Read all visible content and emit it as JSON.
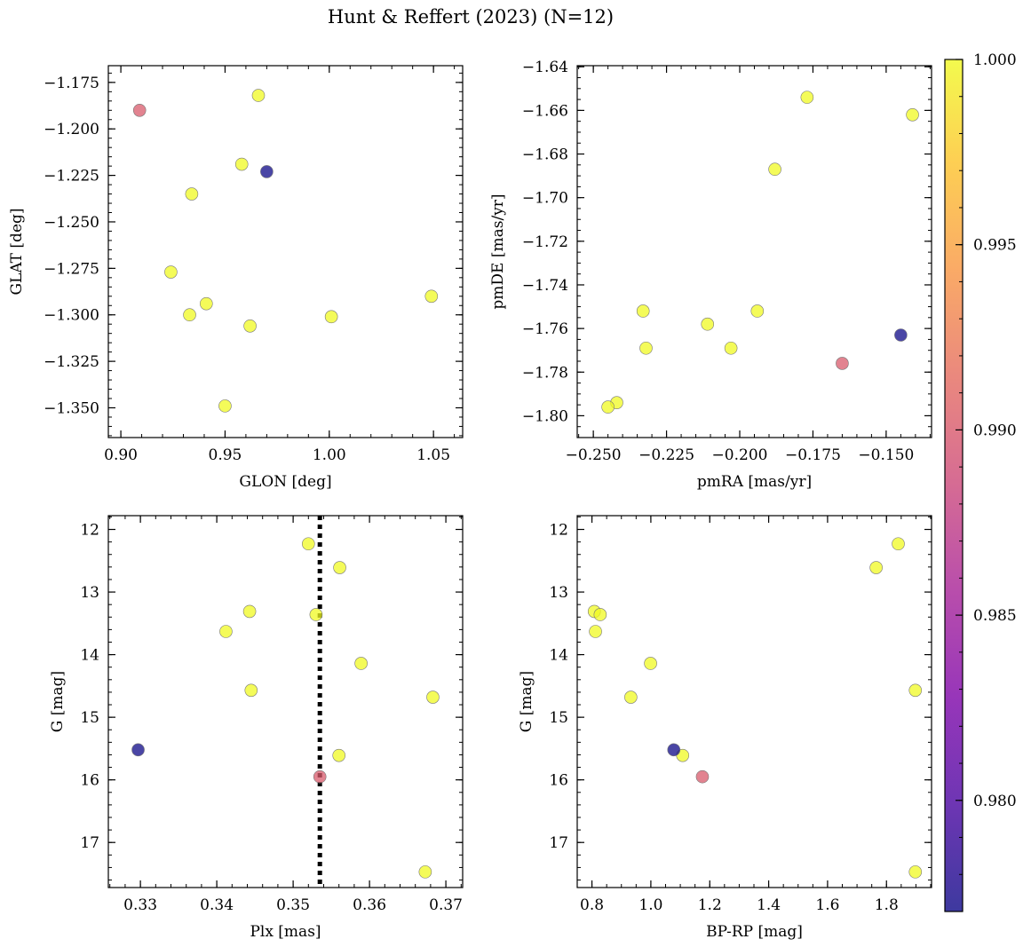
{
  "chart_data": {
    "title": "Hunt & Reffert (2023) (N=12)",
    "colorbar": {
      "colormap": "plasma",
      "range": [
        0.977,
        1.0
      ],
      "ticks": [
        0.98,
        0.985,
        0.99,
        0.995,
        1.0
      ],
      "tick_labels": [
        "0.980",
        "0.985",
        "0.990",
        "0.995",
        "1.000"
      ]
    },
    "stars": [
      {
        "glon": 0.909,
        "glat": -1.19,
        "pmra": -0.165,
        "pmde": -1.776,
        "plx": 0.3535,
        "g": 15.95,
        "bprp": 1.175,
        "prob": 0.99
      },
      {
        "glon": 0.97,
        "glat": -1.223,
        "pmra": -0.145,
        "pmde": -1.763,
        "plx": 0.3297,
        "g": 15.52,
        "bprp": 1.078,
        "prob": 0.977
      },
      {
        "glon": 0.966,
        "glat": -1.182,
        "pmra": -0.177,
        "pmde": -1.654,
        "plx": 0.352,
        "g": 12.23,
        "bprp": 1.84,
        "prob": 1.0
      },
      {
        "glon": 0.958,
        "glat": -1.219,
        "pmra": -0.141,
        "pmde": -1.662,
        "plx": 0.3561,
        "g": 12.61,
        "bprp": 1.765,
        "prob": 1.0
      },
      {
        "glon": 0.934,
        "glat": -1.235,
        "pmra": -0.188,
        "pmde": -1.687,
        "plx": 0.3443,
        "g": 13.31,
        "bprp": 0.808,
        "prob": 1.0
      },
      {
        "glon": 0.924,
        "glat": -1.277,
        "pmra": -0.233,
        "pmde": -1.752,
        "plx": 0.353,
        "g": 13.36,
        "bprp": 0.828,
        "prob": 1.0
      },
      {
        "glon": 0.941,
        "glat": -1.294,
        "pmra": -0.211,
        "pmde": -1.758,
        "plx": 0.3412,
        "g": 13.63,
        "bprp": 0.812,
        "prob": 1.0
      },
      {
        "glon": 0.933,
        "glat": -1.3,
        "pmra": -0.194,
        "pmde": -1.752,
        "plx": 0.3589,
        "g": 14.14,
        "bprp": 0.999,
        "prob": 1.0
      },
      {
        "glon": 1.049,
        "glat": -1.29,
        "pmra": -0.232,
        "pmde": -1.769,
        "plx": 0.3445,
        "g": 14.57,
        "bprp": 1.898,
        "prob": 1.0
      },
      {
        "glon": 1.001,
        "glat": -1.301,
        "pmra": -0.203,
        "pmde": -1.769,
        "plx": 0.3683,
        "g": 14.68,
        "bprp": 0.932,
        "prob": 1.0
      },
      {
        "glon": 0.962,
        "glat": -1.306,
        "pmra": -0.242,
        "pmde": -1.794,
        "plx": 0.356,
        "g": 15.61,
        "bprp": 1.108,
        "prob": 1.0
      },
      {
        "glon": 0.95,
        "glat": -1.349,
        "pmra": -0.245,
        "pmde": -1.796,
        "plx": 0.3673,
        "g": 17.47,
        "bprp": 1.898,
        "prob": 1.0
      }
    ],
    "panels": [
      {
        "type": "scatter",
        "x": "glon",
        "y": "glat",
        "xlabel": "GLON [deg]",
        "ylabel": "GLAT [deg]",
        "xlim": [
          0.894,
          1.064
        ],
        "ylim": [
          -1.366,
          -1.166
        ],
        "xticks": [
          0.9,
          0.95,
          1.0,
          1.05
        ],
        "xtick_labels": [
          "0.90",
          "0.95",
          "1.00",
          "1.05"
        ],
        "yticks": [
          -1.175,
          -1.2,
          -1.225,
          -1.25,
          -1.275,
          -1.3,
          -1.325,
          -1.35
        ],
        "ytick_labels": [
          "−1.175",
          "−1.200",
          "−1.225",
          "−1.250",
          "−1.275",
          "−1.300",
          "−1.325",
          "−1.350"
        ],
        "xminor": 0.01,
        "yminor": 0.005,
        "y_inverted": false
      },
      {
        "type": "scatter",
        "x": "pmra",
        "y": "pmde",
        "xlabel": "pmRA [mas/yr]",
        "ylabel": "pmDE [mas/yr]",
        "xlim": [
          -0.2555,
          -0.1345
        ],
        "ylim": [
          -1.81,
          -1.6395
        ],
        "xticks": [
          -0.25,
          -0.225,
          -0.2,
          -0.175,
          -0.15
        ],
        "xtick_labels": [
          "−0.250",
          "−0.225",
          "−0.200",
          "−0.175",
          "−0.150"
        ],
        "yticks": [
          -1.64,
          -1.66,
          -1.68,
          -1.7,
          -1.72,
          -1.74,
          -1.76,
          -1.78,
          -1.8
        ],
        "ytick_labels": [
          "−1.64",
          "−1.66",
          "−1.68",
          "−1.70",
          "−1.72",
          "−1.74",
          "−1.76",
          "−1.78",
          "−1.80"
        ],
        "xminor": 0.005,
        "yminor": 0.005,
        "y_inverted": false
      },
      {
        "type": "scatter",
        "x": "plx",
        "y": "g",
        "xlabel": "Plx [mas]",
        "ylabel": "G [mag]",
        "xlim": [
          0.3258,
          0.3722
        ],
        "ylim": [
          17.72,
          11.78
        ],
        "xticks": [
          0.33,
          0.34,
          0.35,
          0.36,
          0.37
        ],
        "xtick_labels": [
          "0.33",
          "0.34",
          "0.35",
          "0.36",
          "0.37"
        ],
        "yticks": [
          12,
          13,
          14,
          15,
          16,
          17
        ],
        "ytick_labels": [
          "12",
          "13",
          "14",
          "15",
          "16",
          "17"
        ],
        "xminor": 0.002,
        "yminor": 0.2,
        "y_inverted": true,
        "vline": 0.3535
      },
      {
        "type": "scatter",
        "x": "bprp",
        "y": "g",
        "xlabel": "BP-RP [mag]",
        "ylabel": "G [mag]",
        "xlim": [
          0.75,
          1.953
        ],
        "ylim": [
          17.72,
          11.78
        ],
        "xticks": [
          0.8,
          1.0,
          1.2,
          1.4,
          1.6,
          1.8
        ],
        "xtick_labels": [
          "0.8",
          "1.0",
          "1.2",
          "1.4",
          "1.6",
          "1.8"
        ],
        "yticks": [
          12,
          13,
          14,
          15,
          16,
          17
        ],
        "ytick_labels": [
          "12",
          "13",
          "14",
          "15",
          "16",
          "17"
        ],
        "xminor": 0.05,
        "yminor": 0.2,
        "y_inverted": true
      }
    ]
  }
}
